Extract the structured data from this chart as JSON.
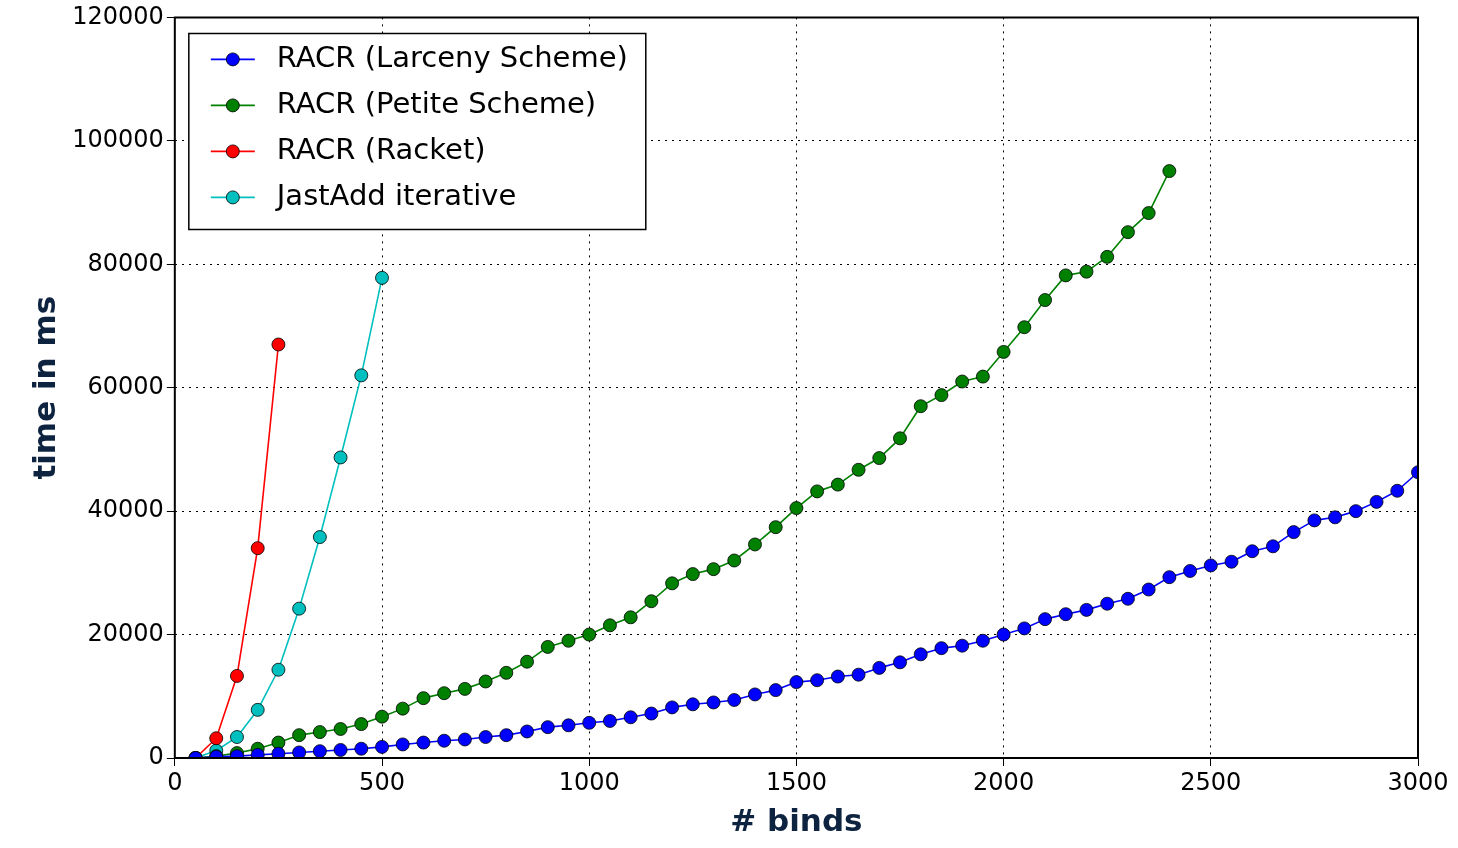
{
  "chart_data": {
    "type": "line",
    "xlabel": "# binds",
    "ylabel": "time in ms",
    "xlim": [
      0,
      3000
    ],
    "xticks": [
      0,
      500,
      1000,
      1500,
      2000,
      2500,
      3000
    ],
    "ylim": [
      0,
      120000
    ],
    "yticks": [
      0,
      20000,
      40000,
      60000,
      80000,
      100000,
      120000
    ],
    "grid": true,
    "legend": "top left",
    "marker": "circle",
    "line_style": "solid",
    "series": [
      {
        "name": "RACR (Larceny Scheme)",
        "color": "#0000ff",
        "x": [
          50,
          100,
          150,
          200,
          250,
          300,
          350,
          400,
          450,
          500,
          550,
          600,
          650,
          700,
          750,
          800,
          850,
          900,
          950,
          1000,
          1050,
          1100,
          1150,
          1200,
          1250,
          1300,
          1350,
          1400,
          1450,
          1500,
          1550,
          1600,
          1650,
          1700,
          1750,
          1800,
          1850,
          1900,
          1950,
          2000,
          2050,
          2100,
          2150,
          2200,
          2250,
          2300,
          2350,
          2400,
          2450,
          2500,
          2550,
          2600,
          2650,
          2700,
          2750,
          2800,
          2850,
          2900,
          2950,
          3000
        ],
        "values": [
          0,
          200,
          300,
          500,
          700,
          900,
          1100,
          1300,
          1500,
          1800,
          2200,
          2500,
          2800,
          3000,
          3400,
          3700,
          4300,
          5000,
          5300,
          5700,
          6000,
          6600,
          7200,
          8200,
          8700,
          9000,
          9400,
          10300,
          11000,
          12300,
          12600,
          13200,
          13500,
          14600,
          15500,
          16800,
          17800,
          18200,
          19000,
          20000,
          21000,
          22500,
          23300,
          24000,
          25000,
          25800,
          27300,
          29300,
          30300,
          31200,
          31800,
          33500,
          34300,
          36600,
          38500,
          39000,
          40000,
          41500,
          43300,
          46300
        ]
      },
      {
        "name": "RACR (Petite Scheme)",
        "color": "#008000",
        "x": [
          50,
          100,
          150,
          200,
          250,
          300,
          350,
          400,
          450,
          500,
          550,
          600,
          650,
          700,
          750,
          800,
          850,
          900,
          950,
          1000,
          1050,
          1100,
          1150,
          1200,
          1250,
          1300,
          1350,
          1400,
          1450,
          1500,
          1550,
          1600,
          1650,
          1700,
          1750,
          1800,
          1850,
          1900,
          1950,
          2000,
          2050,
          2100,
          2150,
          2200,
          2250,
          2300,
          2350,
          2400
        ],
        "values": [
          0,
          300,
          800,
          1500,
          2500,
          3700,
          4200,
          4700,
          5500,
          6700,
          8000,
          9700,
          10500,
          11200,
          12400,
          13800,
          15600,
          18000,
          19000,
          20000,
          21500,
          22800,
          25400,
          28300,
          29800,
          30600,
          32000,
          34600,
          37400,
          40500,
          43200,
          44300,
          46700,
          48600,
          51800,
          57000,
          58800,
          61000,
          61800,
          65800,
          69800,
          74200,
          78200,
          78800,
          81200,
          85200,
          88300,
          95100
        ]
      },
      {
        "name": "RACR (Racket)",
        "color": "#ff0000",
        "x": [
          50,
          100,
          150,
          200,
          250
        ],
        "values": [
          0,
          3200,
          13300,
          34000,
          67000
        ]
      },
      {
        "name": "JastAdd iterative",
        "color": "#00bfbf",
        "x": [
          50,
          100,
          150,
          200,
          250,
          300,
          350,
          400,
          450,
          500
        ],
        "values": [
          0,
          1200,
          3400,
          7800,
          14300,
          24200,
          35800,
          48700,
          62000,
          77800
        ]
      }
    ]
  }
}
